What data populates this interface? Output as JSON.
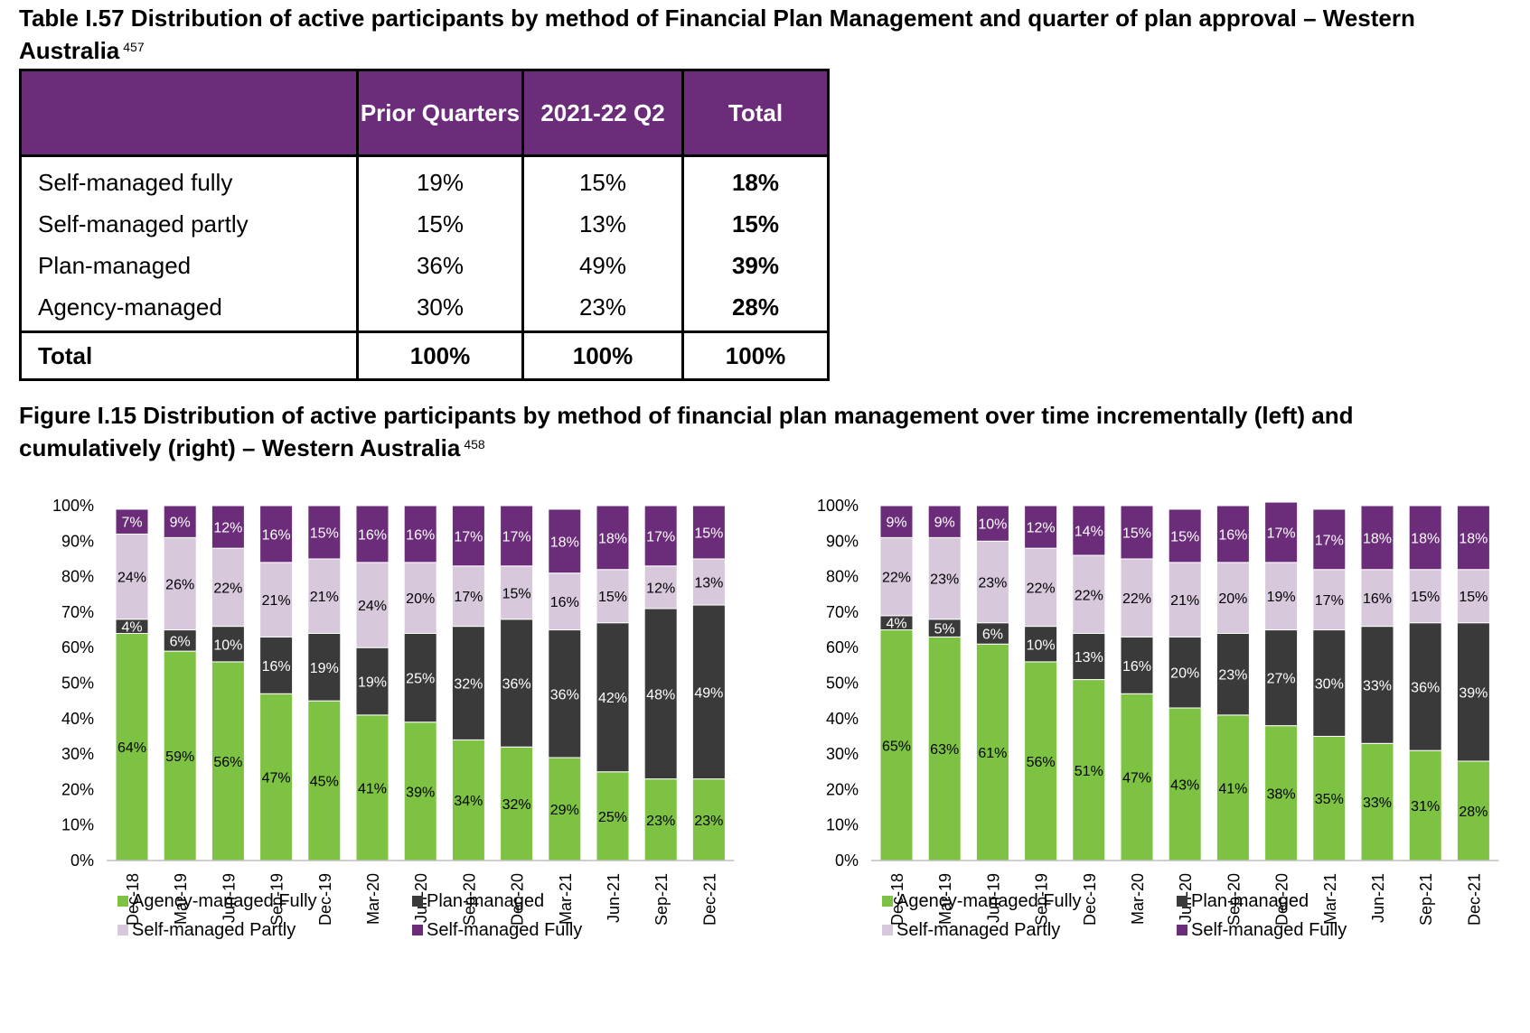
{
  "table": {
    "caption": "Table I.57 Distribution of active participants by method of Financial Plan Management and quarter of plan approval – Western Australia",
    "caption_ref": "457",
    "headers": [
      "",
      "Prior Quarters",
      "2021-22 Q2",
      "Total"
    ],
    "rows": [
      {
        "label": "Self-managed fully",
        "prior": "19%",
        "q2": "15%",
        "total": "18%"
      },
      {
        "label": "Self-managed partly",
        "prior": "15%",
        "q2": "13%",
        "total": "15%"
      },
      {
        "label": "Plan-managed",
        "prior": "36%",
        "q2": "49%",
        "total": "39%"
      },
      {
        "label": "Agency-managed",
        "prior": "30%",
        "q2": "23%",
        "total": "28%"
      }
    ],
    "total_row": {
      "label": "Total",
      "prior": "100%",
      "q2": "100%",
      "total": "100%"
    }
  },
  "figure": {
    "caption": "Figure I.15 Distribution of active participants by method of financial plan management over time incrementally (left) and cumulatively (right) – Western Australia",
    "caption_ref": "458"
  },
  "colors": {
    "agency": "#7dc242",
    "plan": "#3a3a3a",
    "self_partly": "#d7c8dc",
    "self_fully": "#6b2c7a",
    "header_bg": "#6b2c7a"
  },
  "chart_data": [
    {
      "type": "bar",
      "stacked": true,
      "categories": [
        "Dec-18",
        "Mar-19",
        "Jun-19",
        "Sep-19",
        "Dec-19",
        "Mar-20",
        "Jun-20",
        "Sep-20",
        "Dec-20",
        "Mar-21",
        "Jun-21",
        "Sep-21",
        "Dec-21"
      ],
      "yticks": [
        "0%",
        "10%",
        "20%",
        "30%",
        "40%",
        "50%",
        "60%",
        "70%",
        "80%",
        "90%",
        "100%"
      ],
      "ylim": [
        0,
        100
      ],
      "legend_position": "bottom",
      "series": [
        {
          "name": "Agency-managed Fully",
          "color": "#7dc242",
          "values": [
            64,
            59,
            56,
            47,
            45,
            41,
            39,
            34,
            32,
            29,
            25,
            23,
            23
          ],
          "labels": [
            "64%",
            "59%",
            "56%",
            "47%",
            "45%",
            "41%",
            "39%",
            "34%",
            "32%",
            "29%",
            "25%",
            "23%",
            "23%"
          ]
        },
        {
          "name": "Plan-managed",
          "color": "#3a3a3a",
          "values": [
            4,
            6,
            10,
            16,
            19,
            19,
            25,
            32,
            36,
            36,
            42,
            48,
            49
          ],
          "labels": [
            "4%",
            "6%",
            "10%",
            "16%",
            "19%",
            "19%",
            "25%",
            "32%",
            "36%",
            "36%",
            "42%",
            "48%",
            "49%"
          ]
        },
        {
          "name": "Self-managed Partly",
          "color": "#d7c8dc",
          "values": [
            24,
            26,
            22,
            21,
            21,
            24,
            20,
            17,
            15,
            16,
            15,
            12,
            13
          ],
          "labels": [
            "24%",
            "26%",
            "22%",
            "21%",
            "21%",
            "24%",
            "20%",
            "17%",
            "15%",
            "16%",
            "15%",
            "12%",
            "13%"
          ]
        },
        {
          "name": "Self-managed Fully",
          "color": "#6b2c7a",
          "values": [
            7,
            9,
            12,
            16,
            15,
            16,
            16,
            17,
            17,
            18,
            18,
            17,
            15
          ],
          "labels": [
            "7%",
            "9%",
            "12%",
            "16%",
            "15%",
            "16%",
            "16%",
            "17%",
            "17%",
            "18%",
            "18%",
            "17%",
            "15%"
          ]
        }
      ]
    },
    {
      "type": "bar",
      "stacked": true,
      "categories": [
        "Dec-18",
        "Mar-19",
        "Jun-19",
        "Sep-19",
        "Dec-19",
        "Mar-20",
        "Jun-20",
        "Sep-20",
        "Dec-20",
        "Mar-21",
        "Jun-21",
        "Sep-21",
        "Dec-21"
      ],
      "yticks": [
        "0%",
        "10%",
        "20%",
        "30%",
        "40%",
        "50%",
        "60%",
        "70%",
        "80%",
        "90%",
        "100%"
      ],
      "ylim": [
        0,
        100
      ],
      "legend_position": "bottom",
      "series": [
        {
          "name": "Agency-managed Fully",
          "color": "#7dc242",
          "values": [
            65,
            63,
            61,
            56,
            51,
            47,
            43,
            41,
            38,
            35,
            33,
            31,
            28
          ],
          "labels": [
            "65%",
            "63%",
            "61%",
            "56%",
            "51%",
            "47%",
            "43%",
            "41%",
            "38%",
            "35%",
            "33%",
            "31%",
            "28%"
          ]
        },
        {
          "name": "Plan-managed",
          "color": "#3a3a3a",
          "values": [
            4,
            5,
            6,
            10,
            13,
            16,
            20,
            23,
            27,
            30,
            33,
            36,
            39
          ],
          "labels": [
            "4%",
            "5%",
            "6%",
            "10%",
            "13%",
            "16%",
            "20%",
            "23%",
            "27%",
            "30%",
            "33%",
            "36%",
            "39%"
          ]
        },
        {
          "name": "Self-managed Partly",
          "color": "#d7c8dc",
          "values": [
            22,
            23,
            23,
            22,
            22,
            22,
            21,
            20,
            19,
            17,
            16,
            15,
            15
          ],
          "labels": [
            "22%",
            "23%",
            "23%",
            "22%",
            "22%",
            "22%",
            "21%",
            "20%",
            "19%",
            "17%",
            "16%",
            "15%",
            "15%"
          ]
        },
        {
          "name": "Self-managed Fully",
          "color": "#6b2c7a",
          "values": [
            9,
            9,
            10,
            12,
            14,
            15,
            15,
            16,
            17,
            17,
            18,
            18,
            18
          ],
          "labels": [
            "9%",
            "9%",
            "10%",
            "12%",
            "14%",
            "15%",
            "15%",
            "16%",
            "17%",
            "17%",
            "18%",
            "18%",
            "18%"
          ]
        }
      ]
    }
  ]
}
